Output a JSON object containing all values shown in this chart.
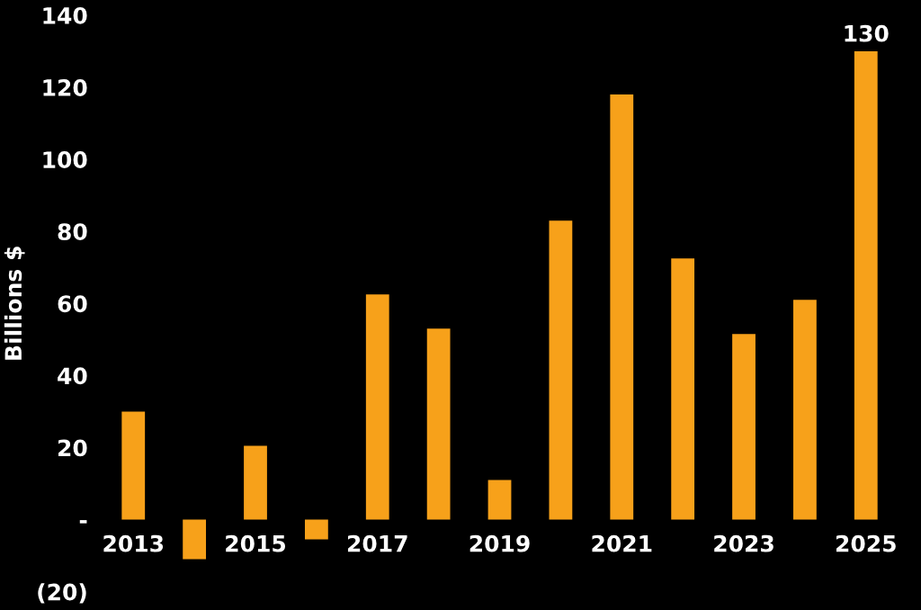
{
  "chart_data": {
    "type": "bar",
    "ylabel": "Billions $",
    "categories": [
      "2013",
      null,
      "2015",
      null,
      "2017",
      null,
      "2019",
      null,
      "2021",
      null,
      "2023",
      null,
      "2025"
    ],
    "values": [
      30,
      -11,
      20.5,
      -5.5,
      62.5,
      53,
      11,
      83,
      118,
      72.5,
      51.5,
      61,
      130
    ],
    "value_labels": [
      null,
      null,
      null,
      null,
      null,
      null,
      null,
      null,
      null,
      null,
      null,
      null,
      "130"
    ],
    "color": "#f7a11a",
    "ylim": [
      -20,
      140
    ],
    "yticks": [
      {
        "value": -20,
        "label": "(20)"
      },
      {
        "value": 0,
        "label": "-"
      },
      20,
      40,
      60,
      80,
      100,
      120,
      140
    ],
    "grid": false,
    "legend": false
  }
}
